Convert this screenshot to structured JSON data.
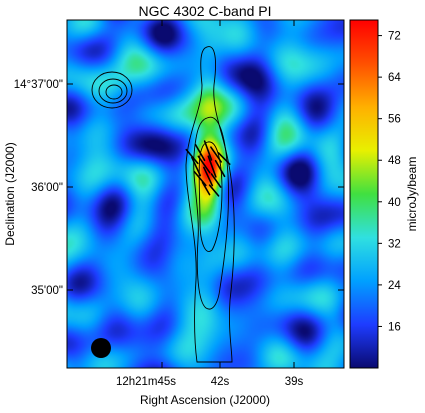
{
  "chart_data": {
    "type": "heatmap",
    "title": "NGC 4302   C-band   PI",
    "xlabel": "Right Ascension (J2000)",
    "ylabel": "Declination (J2000)",
    "colorbar_label": "microJy/beam",
    "colorbar_range": [
      8,
      75
    ],
    "colorbar_ticks": [
      16,
      24,
      32,
      40,
      48,
      56,
      64,
      72
    ],
    "colormap": [
      "#0a0a70",
      "#1e3cff",
      "#00a0ff",
      "#30e0e0",
      "#40e040",
      "#e8f000",
      "#ffb000",
      "#ff5000",
      "#ff0000"
    ],
    "x_ticks": [
      {
        "label": "12h21m45s",
        "ra_sec": 45
      },
      {
        "label": "42s",
        "ra_sec": 42
      },
      {
        "label": "39s",
        "ra_sec": 39
      }
    ],
    "y_ticks": [
      {
        "label": "14°37'00\"",
        "dec_arcsec": 53820
      },
      {
        "label": "36'00\"",
        "dec_arcsec": 53760
      },
      {
        "label": "35'00\"",
        "dec_arcsec": 53700
      }
    ],
    "xlim_ra_sec": [
      47.9,
      37.1
    ],
    "ylim_dec_arcsec": [
      53660,
      53850
    ],
    "emission": {
      "galaxy_peak_microjy": 72,
      "peak_ra_sec": 42.4,
      "peak_dec_arcsec": 53770,
      "disk_microjy": 34
    },
    "annotations": [
      "contours of total intensity",
      "polarization vectors",
      "beam ellipse (lower left)"
    ]
  }
}
